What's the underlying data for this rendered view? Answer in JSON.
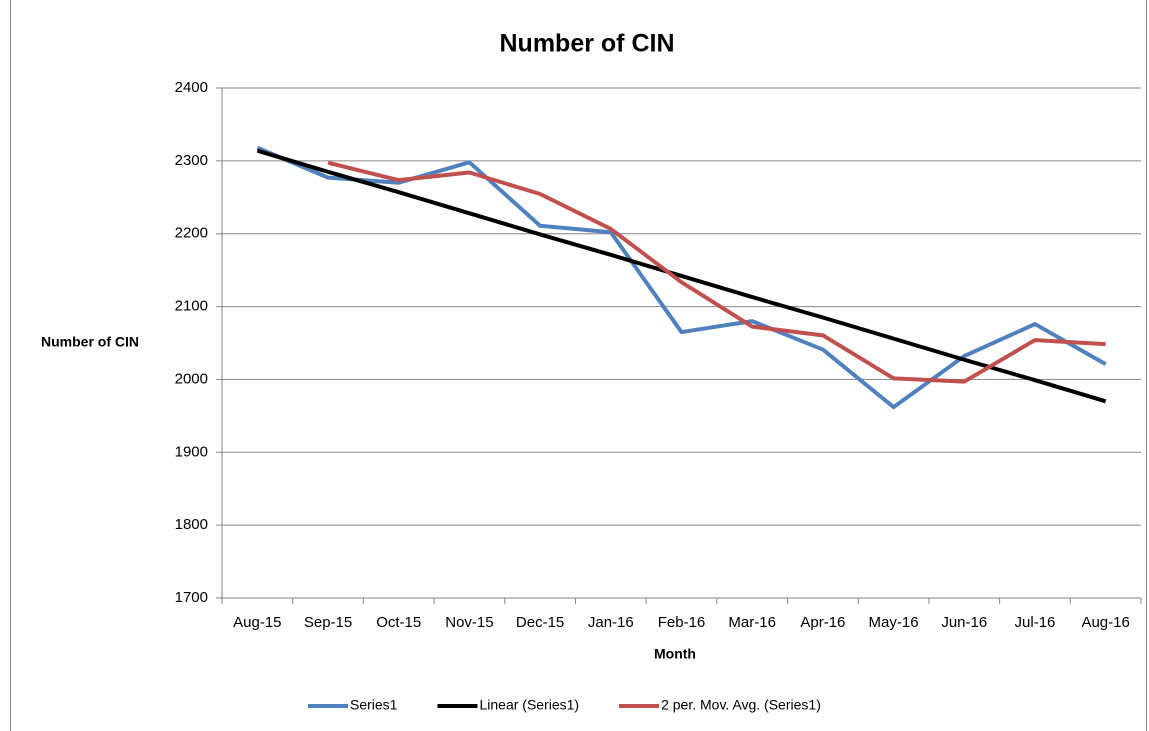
{
  "chart_data": {
    "type": "line",
    "title": "Number of CIN",
    "x_label": "Month",
    "y_label": "Number of CIN",
    "categories": [
      "Aug-15",
      "Sep-15",
      "Oct-15",
      "Nov-15",
      "Dec-15",
      "Jan-16",
      "Feb-16",
      "Mar-16",
      "Apr-16",
      "May-16",
      "Jun-16",
      "Jul-16",
      "Aug-16"
    ],
    "series": [
      {
        "name": "Series1",
        "color": "#4f81bd",
        "values": [
          2318,
          2277,
          2270,
          2298,
          2211,
          2202,
          2065,
          2080,
          2041,
          1962,
          2032,
          2076,
          2021
        ]
      },
      {
        "name": "Linear (Series1)",
        "color": "#000000",
        "values": [
          2314,
          2285,
          2257,
          2228,
          2199,
          2171,
          2142,
          2113,
          2085,
          2056,
          2027,
          1999,
          1970
        ]
      },
      {
        "name": "2 per. Mov. Avg. (Series1)",
        "color": "#c0504d",
        "values": [
          null,
          2297.5,
          2273.5,
          2284,
          2254.5,
          2206.5,
          2133.5,
          2072.5,
          2060.5,
          2001.5,
          1997,
          2054,
          2048.5
        ]
      }
    ],
    "ylim": [
      1700,
      2400
    ],
    "yticks": [
      1700,
      1800,
      1900,
      2000,
      2100,
      2200,
      2300,
      2400
    ],
    "grid": true,
    "legend": "bottom"
  }
}
